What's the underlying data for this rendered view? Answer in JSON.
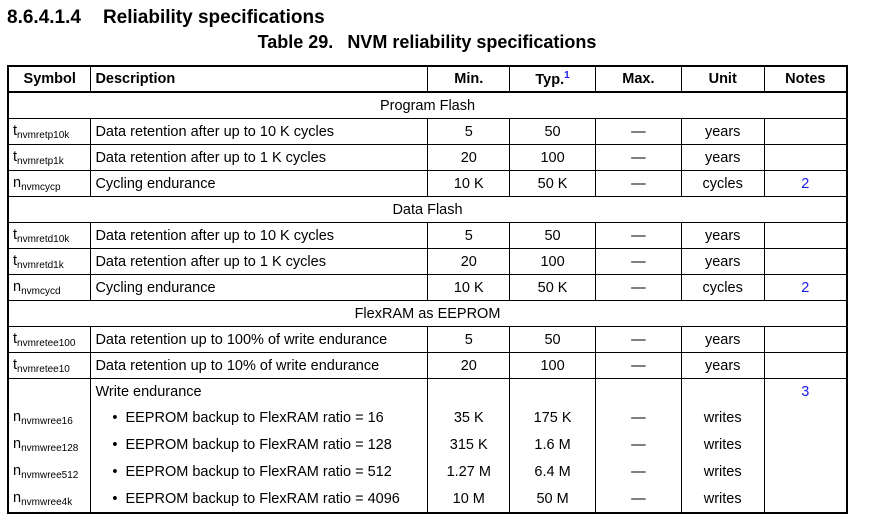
{
  "heading": {
    "number": "8.6.4.1.4",
    "title": "Reliability specifications"
  },
  "table": {
    "caption_label": "Table 29.",
    "caption": "NVM reliability specifications",
    "columns": [
      "Symbol",
      "Description",
      "Min.",
      "Typ.",
      "Max.",
      "Unit",
      "Notes"
    ],
    "typ_note": "1",
    "sections": [
      {
        "title": "Program Flash",
        "rows": [
          {
            "symbol": "t",
            "subscript": "nvmretp10k",
            "description": "Data retention after up to 10 K cycles",
            "min": "5",
            "typ": "50",
            "max": "—",
            "unit": "years"
          },
          {
            "symbol": "t",
            "subscript": "nvmretp1k",
            "description": "Data retention after up to 1 K cycles",
            "min": "20",
            "typ": "100",
            "max": "—",
            "unit": "years"
          },
          {
            "symbol": "n",
            "subscript": "nvmcycp",
            "description": "Cycling endurance",
            "min": "10 K",
            "typ": "50 K",
            "max": "—",
            "unit": "cycles",
            "notes": "2"
          }
        ]
      },
      {
        "title": "Data Flash",
        "rows": [
          {
            "symbol": "t",
            "subscript": "nvmretd10k",
            "description": "Data retention after up to 10 K cycles",
            "min": "5",
            "typ": "50",
            "max": "—",
            "unit": "years"
          },
          {
            "symbol": "t",
            "subscript": "nvmretd1k",
            "description": "Data retention after up to 1 K cycles",
            "min": "20",
            "typ": "100",
            "max": "—",
            "unit": "years"
          },
          {
            "symbol": "n",
            "subscript": "nvmcycd",
            "description": "Cycling endurance",
            "min": "10 K",
            "typ": "50 K",
            "max": "—",
            "unit": "cycles",
            "notes": "2"
          }
        ]
      },
      {
        "title": "FlexRAM as EEPROM",
        "rows": [
          {
            "symbol": "t",
            "subscript": "nvmretee100",
            "description": "Data retention up to 100% of write endurance",
            "min": "5",
            "typ": "50",
            "max": "—",
            "unit": "years"
          },
          {
            "symbol": "t",
            "subscript": "nvmretee10",
            "description": "Data retention up to 10% of write endurance",
            "min": "20",
            "typ": "100",
            "max": "—",
            "unit": "years"
          },
          {
            "description": "Write endurance",
            "notes": "3",
            "items": [
              {
                "symbol": "n",
                "subscript": "nvmwree16",
                "description": "EEPROM backup to FlexRAM ratio = 16",
                "min": "35 K",
                "typ": "175 K",
                "max": "—",
                "unit": "writes"
              },
              {
                "symbol": "n",
                "subscript": "nvmwree128",
                "description": "EEPROM backup to FlexRAM ratio = 128",
                "min": "315 K",
                "typ": "1.6 M",
                "max": "—",
                "unit": "writes"
              },
              {
                "symbol": "n",
                "subscript": "nvmwree512",
                "description": "EEPROM backup to FlexRAM ratio = 512",
                "min": "1.27 M",
                "typ": "6.4 M",
                "max": "—",
                "unit": "writes"
              },
              {
                "symbol": "n",
                "subscript": "nvmwree4k",
                "description": "EEPROM backup to FlexRAM ratio = 4096",
                "min": "10 M",
                "typ": "50 M",
                "max": "—",
                "unit": "writes"
              }
            ]
          }
        ]
      }
    ]
  }
}
